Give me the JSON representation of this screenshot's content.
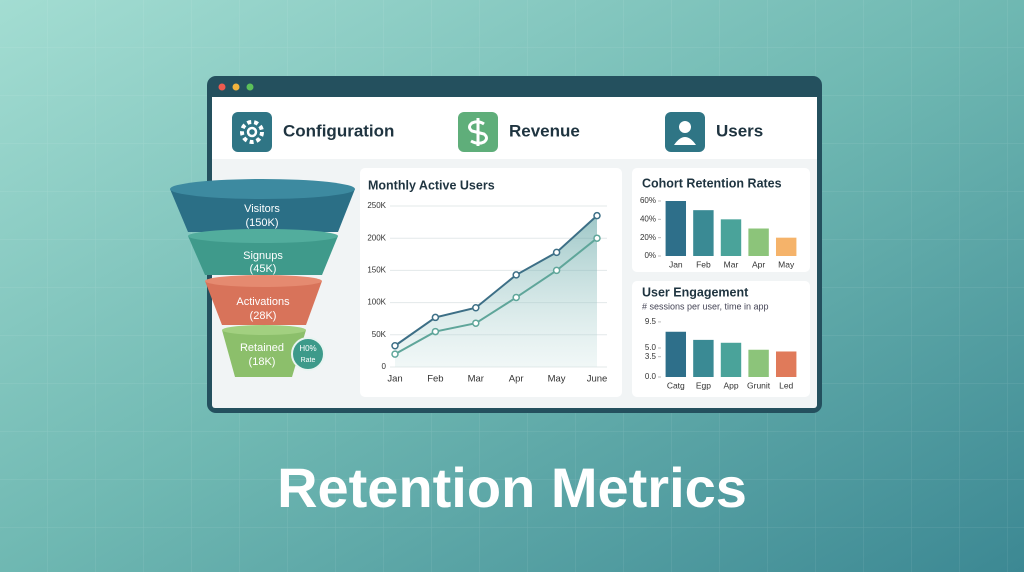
{
  "nav": [
    {
      "label": "Configuration"
    },
    {
      "label": "Revenue"
    },
    {
      "label": "Users"
    }
  ],
  "funnel": {
    "stages": [
      {
        "label": "Visitors",
        "value_label": "(150K)",
        "color": "#2b6f86"
      },
      {
        "label": "Signups",
        "value_label": "(45K)",
        "color": "#3f9a8b"
      },
      {
        "label": "Activations",
        "value_label": "(28K)",
        "color": "#d8735a"
      },
      {
        "label": "Retained",
        "value_label": "(18K)",
        "color": "#8cbf6b"
      }
    ],
    "badge": {
      "value_label": "H0%",
      "label": "Rate"
    }
  },
  "heading": "Retention Metrics",
  "chart_data": [
    {
      "type": "line",
      "title": "Monthly Active Users",
      "categories": [
        "Jan",
        "Feb",
        "Mar",
        "Apr",
        "May",
        "June"
      ],
      "series": [
        {
          "color": "#3d6f86",
          "values": [
            33000,
            77000,
            92000,
            143000,
            178000,
            235000
          ]
        },
        {
          "color": "#5fa69a",
          "values": [
            20000,
            55000,
            68000,
            108000,
            150000,
            200000
          ]
        }
      ],
      "ylim": [
        0,
        250000
      ],
      "yticks": [
        0,
        {
          "value": 50000,
          "label": "50K"
        },
        {
          "value": 100000,
          "label": "100K"
        },
        {
          "value": 150000,
          "label": "150K"
        },
        {
          "value": 200000,
          "label": "200K"
        },
        {
          "value": 250000,
          "label": "250K"
        }
      ],
      "grid": true
    },
    {
      "type": "bar",
      "title": "Cohort Retention Rates",
      "categories": [
        "Jan",
        "Feb",
        "Mar",
        "Apr",
        "May"
      ],
      "values": [
        60,
        50,
        40,
        30,
        20
      ],
      "colors": [
        "#2e6f8a",
        "#3a8a94",
        "#4aa39a",
        "#8cc47a",
        "#f5b36a"
      ],
      "ylim": [
        0,
        60
      ],
      "yticks": [
        {
          "value": 0,
          "label": "0%"
        },
        {
          "value": 20,
          "label": "20%"
        },
        {
          "value": 40,
          "label": "40%"
        },
        {
          "value": 60,
          "label": "60%"
        }
      ],
      "grid": false
    },
    {
      "type": "bar",
      "title": "User Engagement",
      "subtitle": "# sessions per user, time in app",
      "categories": [
        "Catg",
        "Egp",
        "App",
        "Grunit",
        "Led"
      ],
      "values": [
        7.8,
        6.4,
        5.9,
        4.7,
        4.4
      ],
      "colors": [
        "#2e6f8a",
        "#3a8a94",
        "#4aa39a",
        "#8cc47a",
        "#e07a5a"
      ],
      "ylim": [
        0,
        10
      ],
      "yticks": [
        {
          "value": 0,
          "label": "0.0"
        },
        3.5,
        {
          "value": 5,
          "label": "5.0"
        },
        9.5
      ],
      "grid": false
    }
  ]
}
